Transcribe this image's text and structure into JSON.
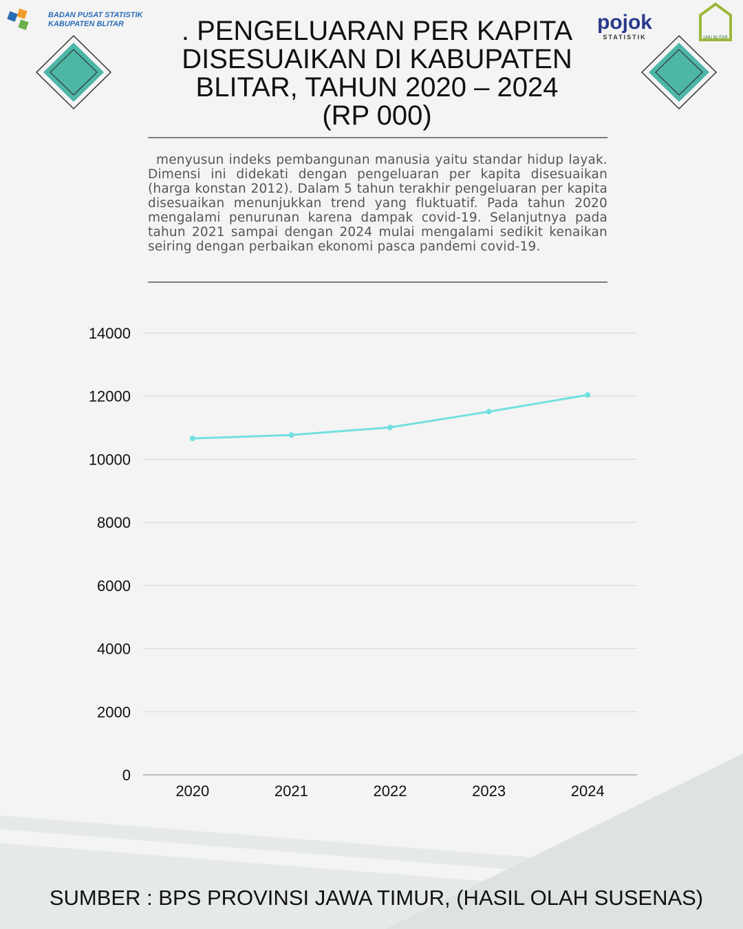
{
  "header": {
    "org_line1": "BADAN PUSAT STATISTIK",
    "org_line2": "KABUPATEN BLITAR",
    "pojok": "pojok",
    "pojok_sub": "STATISTIK",
    "unu": "UNU BLITAR"
  },
  "paragraph": "menyusun indeks pembangunan manusia yaitu standar hidup layak. Dimensi ini didekati dengan pengeluaran per kapita disesuaikan (harga konstan 2012). Dalam 5 tahun terakhir pengeluaran per kapita disesuaikan menunjukkan trend yang fluktuatif. Pada tahun 2020 mengalami penurunan karena dampak covid-19. Selanjutnya pada tahun 2021 sampai dengan 2024 mulai mengalami sedikit kenaikan seiring dengan perbaikan ekonomi pasca pandemi covid-19.",
  "source": "SUMBER : BPS PROVINSI JAWA TIMUR, (HASIL OLAH SUSENAS)",
  "chart_data": {
    "type": "line",
    "title": [
      ". PENGELUARAN PER KAPITA",
      "DISESUAIKAN DI KABUPATEN",
      "BLITAR, TAHUN 2020 – 2024",
      "(RP 000)"
    ],
    "categories": [
      "2020",
      "2021",
      "2022",
      "2023",
      "2024"
    ],
    "series": [
      {
        "name": "Pengeluaran per kapita",
        "color": "#72e0e0",
        "values": [
          10660,
          10770,
          11010,
          11510,
          12040
        ]
      }
    ],
    "ylim": [
      0,
      14000
    ],
    "yticks": [
      0,
      2000,
      4000,
      6000,
      8000,
      10000,
      12000,
      14000
    ],
    "grid": true
  }
}
